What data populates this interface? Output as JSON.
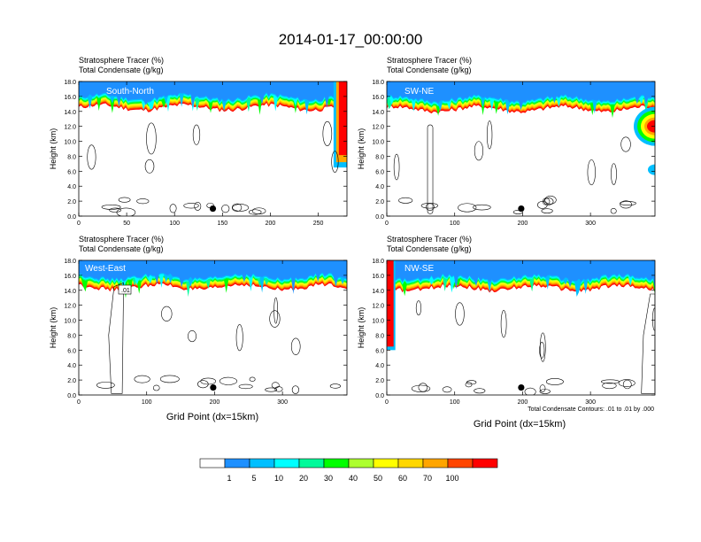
{
  "page": {
    "title": "2014-01-17_00:00:00"
  },
  "chart_data": [
    {
      "type": "heatmap",
      "title_line1": "Stratosphere Tracer   (%)",
      "title_line2": "Total Condensate   (g/kg)",
      "panel_label": "South-North",
      "ylabel": "Height (km)",
      "xlabel": "",
      "xlim": [
        0,
        280
      ],
      "ylim": [
        0,
        18
      ],
      "xticks": [
        0,
        50,
        100,
        150,
        200,
        250
      ],
      "yticks": [
        "0.0",
        "2.0",
        "4.0",
        "6.0",
        "8.0",
        "10.0",
        "12.0",
        "14.0",
        "16.0",
        "18.0"
      ],
      "marker": {
        "x": 140,
        "y": 1.0
      },
      "right_intrusion": {
        "x_start": 266,
        "x_end": 280,
        "y_bottom": 6.5
      }
    },
    {
      "type": "heatmap",
      "title_line1": "Stratosphere Tracer   (%)",
      "title_line2": "Total Condensate   (g/kg)",
      "panel_label": "SW-NE",
      "ylabel": "Height (km)",
      "xlabel": "",
      "xlim": [
        0,
        395
      ],
      "ylim": [
        0,
        18
      ],
      "xticks": [
        0,
        100,
        200,
        300
      ],
      "yticks": [
        "0.0",
        "2.0",
        "4.0",
        "6.0",
        "8.0",
        "10.0",
        "12.0",
        "14.0",
        "16.0",
        "18.0"
      ],
      "marker": {
        "x": 198,
        "y": 1.0
      },
      "right_blob": {
        "x": 395,
        "y": 12.0
      }
    },
    {
      "type": "heatmap",
      "title_line1": "Stratosphere Tracer   (%)",
      "title_line2": "Total Condensate   (g/kg)",
      "panel_label": "West-East",
      "ylabel": "Height (km)",
      "xlabel": "Grid Point (dx=15km)",
      "xlim": [
        0,
        395
      ],
      "ylim": [
        0,
        18
      ],
      "xticks": [
        0,
        100,
        200,
        300
      ],
      "yticks": [
        "0.0",
        "2.0",
        "4.0",
        "6.0",
        "8.0",
        "10.0",
        "12.0",
        "14.0",
        "16.0",
        "18.0"
      ],
      "marker": {
        "x": 198,
        "y": 1.0
      },
      "contour_label": ".01"
    },
    {
      "type": "heatmap",
      "title_line1": "Stratosphere Tracer   (%)",
      "title_line2": "Total Condensate   (g/kg)",
      "panel_label": "NW-SE",
      "ylabel": "Height (km)",
      "xlabel": "Grid Point (dx=15km)",
      "xlim": [
        0,
        395
      ],
      "ylim": [
        0,
        18
      ],
      "xticks": [
        0,
        100,
        200,
        300
      ],
      "yticks": [
        "0.0",
        "2.0",
        "4.0",
        "6.0",
        "8.0",
        "10.0",
        "12.0",
        "14.0",
        "16.0",
        "18.0"
      ],
      "marker": {
        "x": 198,
        "y": 1.0
      },
      "left_intrusion": {
        "x_start": 0,
        "x_end": 10,
        "y_bottom": 6.0
      },
      "contour_note": "Total Condensate Contours: .01 to .01 by .000"
    }
  ],
  "colorbar": {
    "colors": [
      "#ffffff",
      "#1e90ff",
      "#00bfff",
      "#00ffff",
      "#00fa9a",
      "#00ff00",
      "#adff2f",
      "#ffff00",
      "#ffd700",
      "#ffa500",
      "#ff4500",
      "#ff0000"
    ],
    "labels": [
      "1",
      "5",
      "10",
      "20",
      "30",
      "40",
      "50",
      "60",
      "70",
      "100"
    ]
  }
}
